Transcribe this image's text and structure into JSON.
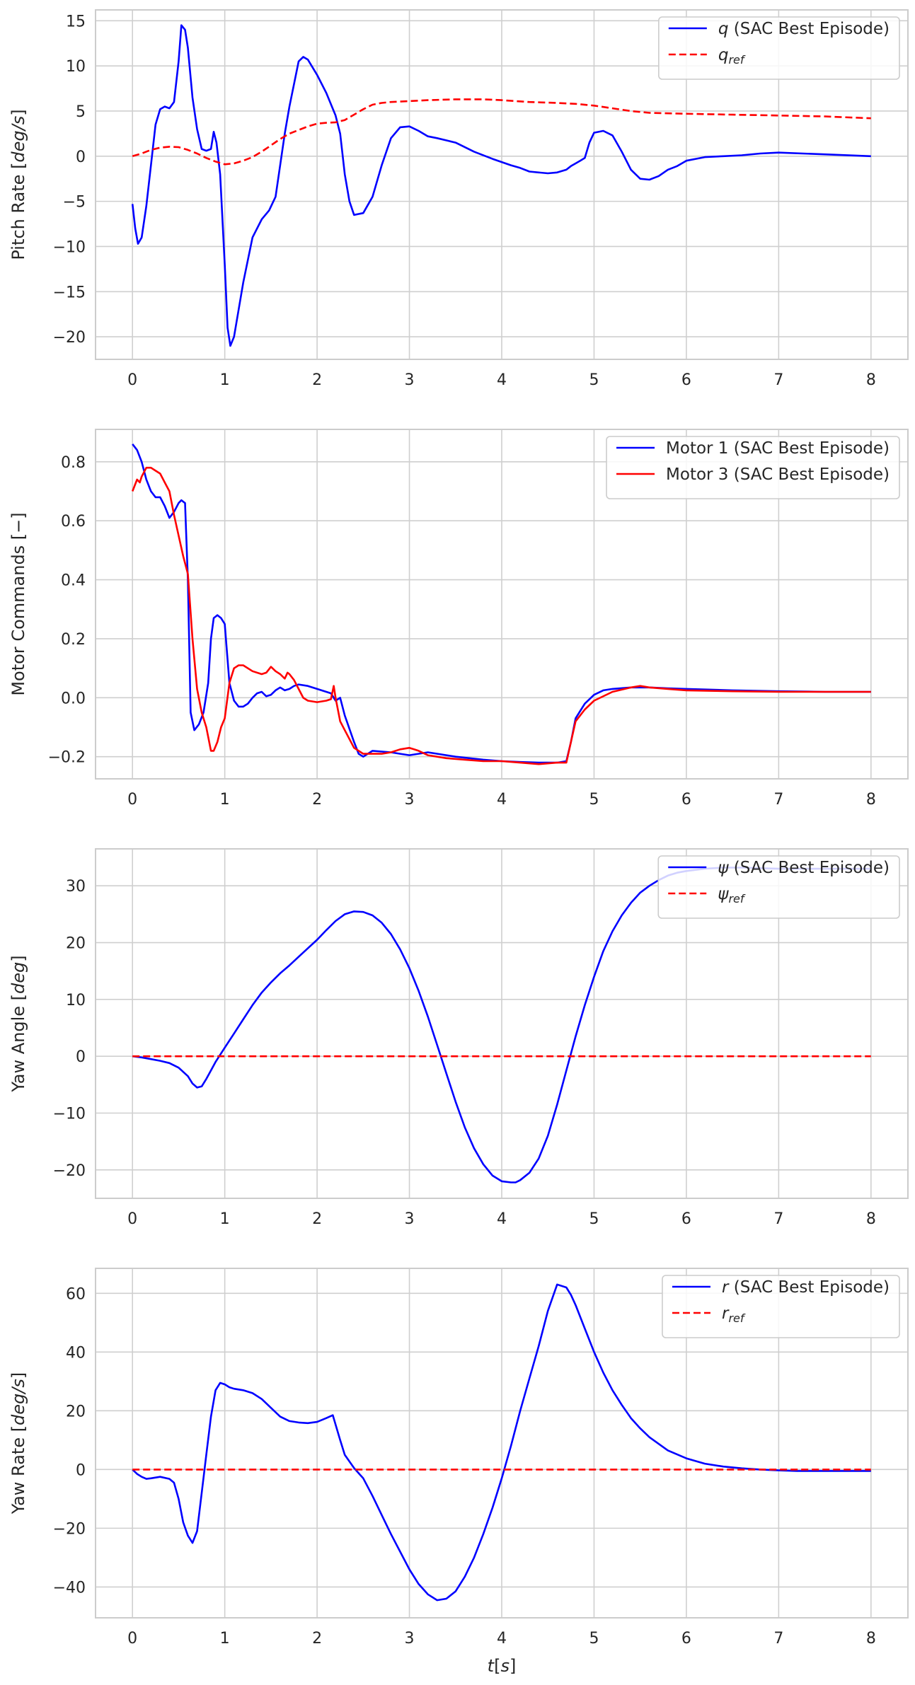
{
  "chart_data": [
    {
      "type": "line",
      "title": "",
      "xlabel": "",
      "ylabel": "Pitch Rate [deg/s]",
      "xlim": [
        -0.4,
        8.4
      ],
      "ylim": [
        -22.5,
        16.2
      ],
      "xticks": [
        0,
        1,
        2,
        3,
        4,
        5,
        6,
        7,
        8
      ],
      "yticks": [
        -20,
        -15,
        -10,
        -5,
        0,
        5,
        10,
        15
      ],
      "grid": true,
      "legend": "top-right",
      "series": [
        {
          "name": "q (SAC Best Episode)",
          "color": "#0000ff",
          "dash": "solid",
          "x": [
            0.0,
            0.03,
            0.06,
            0.1,
            0.15,
            0.2,
            0.25,
            0.3,
            0.35,
            0.4,
            0.45,
            0.5,
            0.53,
            0.57,
            0.6,
            0.65,
            0.7,
            0.75,
            0.8,
            0.85,
            0.88,
            0.91,
            0.95,
            1.0,
            1.03,
            1.06,
            1.1,
            1.15,
            1.2,
            1.3,
            1.4,
            1.48,
            1.55,
            1.6,
            1.65,
            1.7,
            1.75,
            1.8,
            1.85,
            1.9,
            2.0,
            2.1,
            2.2,
            2.25,
            2.3,
            2.35,
            2.4,
            2.5,
            2.6,
            2.7,
            2.8,
            2.9,
            3.0,
            3.1,
            3.2,
            3.3,
            3.5,
            3.7,
            3.9,
            4.1,
            4.2,
            4.3,
            4.4,
            4.5,
            4.6,
            4.7,
            4.75,
            4.8,
            4.85,
            4.9,
            4.95,
            5.0,
            5.1,
            5.2,
            5.3,
            5.4,
            5.5,
            5.6,
            5.7,
            5.8,
            5.9,
            6.0,
            6.2,
            6.4,
            6.6,
            6.8,
            7.0,
            7.5,
            8.0
          ],
          "y": [
            -5.3,
            -8.0,
            -9.7,
            -9.0,
            -5.5,
            -1.0,
            3.5,
            5.2,
            5.5,
            5.3,
            6.0,
            10.5,
            14.5,
            14.0,
            12.0,
            6.5,
            3.0,
            0.8,
            0.6,
            0.8,
            2.7,
            1.5,
            -2.0,
            -12.0,
            -19.0,
            -21.0,
            -20.0,
            -17.0,
            -14.0,
            -9.0,
            -7.0,
            -6.0,
            -4.5,
            -1.0,
            2.5,
            5.5,
            8.0,
            10.5,
            11.0,
            10.7,
            9.0,
            7.0,
            4.5,
            2.5,
            -2.0,
            -5.0,
            -6.5,
            -6.3,
            -4.5,
            -1.0,
            2.0,
            3.2,
            3.3,
            2.8,
            2.2,
            2.0,
            1.5,
            0.5,
            -0.3,
            -1.0,
            -1.3,
            -1.7,
            -1.8,
            -1.9,
            -1.8,
            -1.5,
            -1.1,
            -0.8,
            -0.5,
            -0.2,
            1.5,
            2.6,
            2.8,
            2.3,
            0.5,
            -1.5,
            -2.5,
            -2.6,
            -2.2,
            -1.5,
            -1.1,
            -0.5,
            -0.1,
            0.0,
            0.1,
            0.3,
            0.4,
            0.2,
            0.0
          ]
        },
        {
          "name": "q_ref",
          "color": "#ff0000",
          "dash": "dashed",
          "x": [
            0.0,
            0.1,
            0.2,
            0.3,
            0.4,
            0.5,
            0.6,
            0.7,
            0.8,
            0.9,
            1.0,
            1.1,
            1.2,
            1.3,
            1.4,
            1.5,
            1.6,
            1.7,
            1.8,
            1.9,
            2.0,
            2.1,
            2.2,
            2.3,
            2.4,
            2.5,
            2.6,
            2.7,
            2.8,
            3.0,
            3.2,
            3.5,
            3.8,
            4.0,
            4.3,
            4.6,
            4.8,
            5.0,
            5.2,
            5.4,
            5.6,
            6.0,
            6.5,
            7.0,
            7.5,
            8.0
          ],
          "y": [
            0.0,
            0.3,
            0.7,
            0.95,
            1.05,
            1.0,
            0.7,
            0.3,
            -0.2,
            -0.6,
            -0.9,
            -0.8,
            -0.5,
            -0.1,
            0.5,
            1.2,
            1.9,
            2.5,
            2.9,
            3.3,
            3.6,
            3.7,
            3.75,
            4.0,
            4.6,
            5.2,
            5.7,
            5.9,
            6.0,
            6.1,
            6.2,
            6.3,
            6.3,
            6.2,
            6.0,
            5.9,
            5.8,
            5.6,
            5.3,
            5.0,
            4.8,
            4.7,
            4.6,
            4.5,
            4.4,
            4.2
          ]
        }
      ]
    },
    {
      "type": "line",
      "title": "",
      "xlabel": "",
      "ylabel": "Motor Commands [−]",
      "xlim": [
        -0.4,
        8.4
      ],
      "ylim": [
        -0.275,
        0.91
      ],
      "xticks": [
        0,
        1,
        2,
        3,
        4,
        5,
        6,
        7,
        8
      ],
      "yticks": [
        -0.2,
        0.0,
        0.2,
        0.4,
        0.6,
        0.8
      ],
      "grid": true,
      "legend": "top-right",
      "series": [
        {
          "name": "Motor 1 (SAC Best Episode)",
          "color": "#0000ff",
          "dash": "solid",
          "x": [
            0.0,
            0.05,
            0.1,
            0.15,
            0.2,
            0.25,
            0.3,
            0.35,
            0.4,
            0.45,
            0.5,
            0.53,
            0.57,
            0.6,
            0.63,
            0.67,
            0.72,
            0.77,
            0.82,
            0.85,
            0.88,
            0.92,
            0.96,
            1.0,
            1.05,
            1.1,
            1.15,
            1.2,
            1.25,
            1.3,
            1.35,
            1.4,
            1.45,
            1.5,
            1.55,
            1.6,
            1.65,
            1.7,
            1.75,
            1.8,
            1.9,
            2.0,
            2.1,
            2.15,
            2.2,
            2.25,
            2.3,
            2.4,
            2.45,
            2.5,
            2.6,
            2.8,
            2.9,
            3.0,
            3.2,
            3.5,
            3.8,
            4.0,
            4.2,
            4.4,
            4.6,
            4.7,
            4.75,
            4.8,
            4.9,
            5.0,
            5.1,
            5.2,
            5.4,
            5.6,
            5.8,
            6.0,
            6.5,
            7.0,
            7.5,
            8.0
          ],
          "y": [
            0.86,
            0.84,
            0.8,
            0.74,
            0.7,
            0.68,
            0.68,
            0.65,
            0.61,
            0.63,
            0.66,
            0.67,
            0.66,
            0.4,
            -0.05,
            -0.11,
            -0.09,
            -0.05,
            0.05,
            0.2,
            0.27,
            0.28,
            0.27,
            0.25,
            0.05,
            -0.01,
            -0.03,
            -0.03,
            -0.02,
            0.0,
            0.015,
            0.02,
            0.005,
            0.01,
            0.025,
            0.035,
            0.025,
            0.03,
            0.04,
            0.045,
            0.04,
            0.03,
            0.02,
            0.015,
            -0.01,
            0.0,
            -0.06,
            -0.15,
            -0.19,
            -0.2,
            -0.18,
            -0.185,
            -0.19,
            -0.195,
            -0.185,
            -0.2,
            -0.21,
            -0.215,
            -0.218,
            -0.22,
            -0.22,
            -0.215,
            -0.15,
            -0.07,
            -0.02,
            0.01,
            0.025,
            0.03,
            0.035,
            0.035,
            0.032,
            0.03,
            0.025,
            0.022,
            0.02,
            0.02
          ]
        },
        {
          "name": "Motor 3 (SAC Best Episode)",
          "color": "#ff0000",
          "dash": "solid",
          "x": [
            0.0,
            0.05,
            0.08,
            0.1,
            0.15,
            0.2,
            0.25,
            0.3,
            0.35,
            0.4,
            0.45,
            0.5,
            0.55,
            0.6,
            0.65,
            0.7,
            0.75,
            0.8,
            0.85,
            0.88,
            0.92,
            0.96,
            1.0,
            1.05,
            1.1,
            1.15,
            1.2,
            1.3,
            1.4,
            1.45,
            1.5,
            1.55,
            1.6,
            1.65,
            1.68,
            1.7,
            1.75,
            1.8,
            1.85,
            1.9,
            2.0,
            2.1,
            2.15,
            2.18,
            2.2,
            2.25,
            2.3,
            2.4,
            2.5,
            2.6,
            2.7,
            2.8,
            2.9,
            3.0,
            3.05,
            3.1,
            3.2,
            3.4,
            3.6,
            3.8,
            4.0,
            4.2,
            4.4,
            4.6,
            4.7,
            4.75,
            4.8,
            4.9,
            5.0,
            5.2,
            5.4,
            5.5,
            5.6,
            5.8,
            6.0,
            6.5,
            7.0,
            7.5,
            8.0
          ],
          "y": [
            0.7,
            0.74,
            0.73,
            0.75,
            0.78,
            0.78,
            0.77,
            0.76,
            0.73,
            0.7,
            0.62,
            0.55,
            0.48,
            0.42,
            0.2,
            0.03,
            -0.05,
            -0.1,
            -0.18,
            -0.18,
            -0.15,
            -0.1,
            -0.07,
            0.05,
            0.1,
            0.11,
            0.11,
            0.09,
            0.08,
            0.085,
            0.105,
            0.09,
            0.08,
            0.065,
            0.085,
            0.08,
            0.06,
            0.03,
            0.0,
            -0.01,
            -0.015,
            -0.01,
            -0.005,
            0.04,
            0.0,
            -0.08,
            -0.11,
            -0.17,
            -0.19,
            -0.19,
            -0.19,
            -0.185,
            -0.175,
            -0.17,
            -0.175,
            -0.18,
            -0.195,
            -0.205,
            -0.21,
            -0.215,
            -0.215,
            -0.22,
            -0.225,
            -0.22,
            -0.22,
            -0.15,
            -0.08,
            -0.04,
            -0.01,
            0.02,
            0.035,
            0.04,
            0.035,
            0.03,
            0.025,
            0.022,
            0.02,
            0.02,
            0.02
          ]
        }
      ]
    },
    {
      "type": "line",
      "title": "",
      "xlabel": "",
      "ylabel": "Yaw Angle [deg]",
      "xlim": [
        -0.4,
        8.4
      ],
      "ylim": [
        -25.0,
        36.5
      ],
      "xticks": [
        0,
        1,
        2,
        3,
        4,
        5,
        6,
        7,
        8
      ],
      "yticks": [
        -20,
        -10,
        0,
        10,
        20,
        30
      ],
      "grid": true,
      "legend": "top-right",
      "series": [
        {
          "name": "ψ (SAC Best Episode)",
          "color": "#0000ff",
          "dash": "solid",
          "x": [
            0.0,
            0.1,
            0.2,
            0.3,
            0.4,
            0.5,
            0.6,
            0.65,
            0.7,
            0.75,
            0.8,
            0.85,
            0.9,
            1.0,
            1.1,
            1.2,
            1.3,
            1.4,
            1.5,
            1.6,
            1.7,
            1.8,
            1.9,
            2.0,
            2.1,
            2.2,
            2.3,
            2.4,
            2.5,
            2.6,
            2.7,
            2.8,
            2.9,
            3.0,
            3.1,
            3.2,
            3.3,
            3.4,
            3.5,
            3.6,
            3.7,
            3.8,
            3.9,
            4.0,
            4.1,
            4.15,
            4.2,
            4.3,
            4.4,
            4.5,
            4.6,
            4.7,
            4.8,
            4.9,
            5.0,
            5.1,
            5.2,
            5.3,
            5.4,
            5.5,
            5.6,
            5.7,
            5.8,
            5.9,
            6.0,
            6.2,
            6.4,
            6.6,
            6.8,
            7.0,
            7.5,
            8.0
          ],
          "y": [
            0.0,
            -0.2,
            -0.5,
            -0.8,
            -1.2,
            -2.0,
            -3.5,
            -4.8,
            -5.5,
            -5.3,
            -4.0,
            -2.5,
            -1.0,
            1.5,
            4.0,
            6.5,
            9.0,
            11.2,
            13.0,
            14.6,
            16.0,
            17.5,
            19.0,
            20.5,
            22.2,
            23.8,
            25.0,
            25.5,
            25.4,
            24.8,
            23.5,
            21.5,
            18.8,
            15.5,
            11.5,
            7.0,
            2.0,
            -3.0,
            -8.0,
            -12.5,
            -16.2,
            -19.0,
            -21.0,
            -22.0,
            -22.2,
            -22.2,
            -21.8,
            -20.5,
            -18.0,
            -14.0,
            -8.5,
            -2.5,
            3.5,
            9.0,
            14.0,
            18.5,
            22.0,
            24.8,
            27.0,
            28.8,
            30.0,
            31.0,
            31.8,
            32.3,
            32.6,
            33.0,
            33.2,
            33.2,
            33.1,
            33.0,
            33.0,
            33.0
          ]
        },
        {
          "name": "ψ_ref",
          "color": "#ff0000",
          "dash": "dashed",
          "x": [
            0.0,
            8.0
          ],
          "y": [
            0.0,
            0.0
          ]
        }
      ]
    },
    {
      "type": "line",
      "title": "",
      "xlabel": "t[s]",
      "ylabel": "Yaw Rate [deg/s]",
      "xlim": [
        -0.4,
        8.4
      ],
      "ylim": [
        -50.5,
        68.5
      ],
      "xticks": [
        0,
        1,
        2,
        3,
        4,
        5,
        6,
        7,
        8
      ],
      "yticks": [
        -40,
        -20,
        0,
        20,
        40,
        60
      ],
      "grid": true,
      "legend": "top-right",
      "series": [
        {
          "name": "r (SAC Best Episode)",
          "color": "#0000ff",
          "dash": "solid",
          "x": [
            0.0,
            0.05,
            0.1,
            0.15,
            0.2,
            0.3,
            0.4,
            0.45,
            0.5,
            0.55,
            0.6,
            0.65,
            0.7,
            0.75,
            0.8,
            0.85,
            0.9,
            0.95,
            1.0,
            1.05,
            1.1,
            1.2,
            1.3,
            1.4,
            1.5,
            1.6,
            1.7,
            1.8,
            1.9,
            2.0,
            2.1,
            2.17,
            2.25,
            2.3,
            2.4,
            2.5,
            2.6,
            2.7,
            2.8,
            2.9,
            3.0,
            3.1,
            3.2,
            3.3,
            3.4,
            3.5,
            3.6,
            3.7,
            3.8,
            3.9,
            4.0,
            4.1,
            4.2,
            4.3,
            4.4,
            4.5,
            4.6,
            4.7,
            4.75,
            4.8,
            4.9,
            5.0,
            5.1,
            5.2,
            5.3,
            5.4,
            5.5,
            5.6,
            5.8,
            6.0,
            6.2,
            6.4,
            6.6,
            6.8,
            7.0,
            7.2,
            7.4,
            7.6,
            8.0
          ],
          "y": [
            0.0,
            -1.5,
            -2.5,
            -3.2,
            -3.0,
            -2.5,
            -3.2,
            -4.5,
            -10.0,
            -18.0,
            -22.5,
            -25.0,
            -21.0,
            -8.0,
            5.0,
            18.0,
            27.0,
            29.5,
            29.0,
            28.0,
            27.5,
            27.0,
            26.0,
            24.0,
            21.0,
            18.0,
            16.5,
            16.0,
            15.8,
            16.2,
            17.5,
            18.5,
            10.0,
            5.0,
            0.5,
            -3.0,
            -9.0,
            -15.5,
            -22.0,
            -28.0,
            -34.0,
            -39.0,
            -42.5,
            -44.5,
            -44.0,
            -41.5,
            -36.5,
            -30.0,
            -22.0,
            -13.0,
            -3.0,
            8.0,
            20.0,
            31.0,
            42.0,
            54.0,
            63.0,
            62.0,
            59.5,
            56.0,
            48.0,
            40.0,
            33.0,
            27.0,
            22.0,
            17.5,
            14.0,
            11.0,
            6.5,
            3.8,
            2.0,
            1.0,
            0.4,
            0.0,
            -0.3,
            -0.5,
            -0.5,
            -0.5,
            -0.5
          ]
        },
        {
          "name": "r_ref",
          "color": "#ff0000",
          "dash": "dashed",
          "x": [
            0.0,
            8.0
          ],
          "y": [
            0.0,
            0.0
          ]
        }
      ]
    }
  ]
}
